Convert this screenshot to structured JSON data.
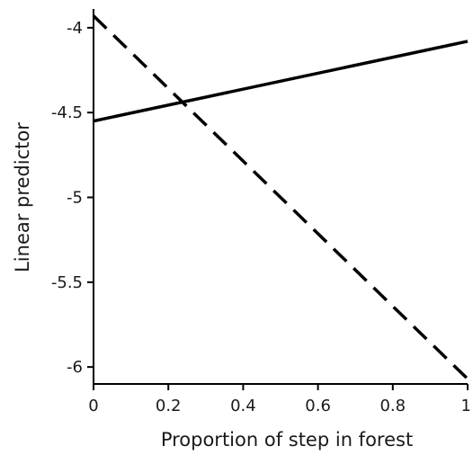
{
  "chart_data": {
    "type": "line",
    "title": "",
    "xlabel": "Proportion of step in forest",
    "ylabel": "Linear predictor",
    "xlim": [
      0,
      1
    ],
    "ylim": [
      -6.1,
      -3.9
    ],
    "x_ticks": [
      0,
      0.2,
      0.4,
      0.6,
      0.8,
      1
    ],
    "x_tick_labels": [
      "0",
      "0.2",
      "0.4",
      "0.6",
      "0.8",
      "1"
    ],
    "y_ticks": [
      -4,
      -4.5,
      -5,
      -5.5,
      -6
    ],
    "y_tick_labels": [
      "-4",
      "-4.5",
      "-5",
      "-5.5",
      "-6"
    ],
    "grid": false,
    "legend": "none",
    "series": [
      {
        "style": "solid",
        "color": "#000000",
        "x": [
          0,
          1
        ],
        "y": [
          -4.55,
          -4.08
        ]
      },
      {
        "style": "dashed",
        "color": "#000000",
        "x": [
          0,
          1
        ],
        "y": [
          -3.93,
          -6.07
        ]
      }
    ]
  }
}
